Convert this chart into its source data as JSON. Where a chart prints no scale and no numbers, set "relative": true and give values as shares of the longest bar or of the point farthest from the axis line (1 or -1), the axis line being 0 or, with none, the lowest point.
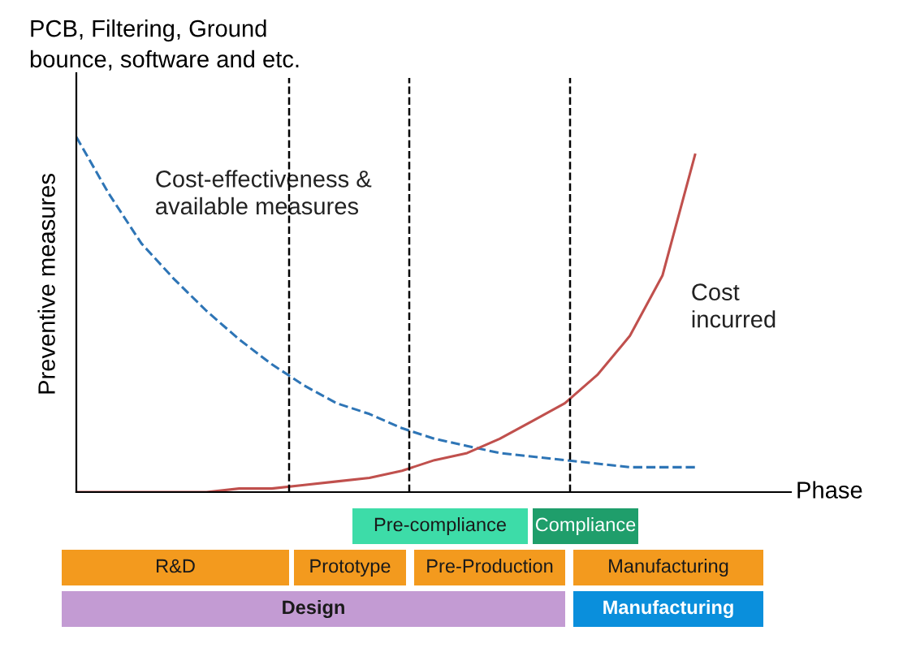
{
  "chart_data": {
    "type": "line",
    "relative": true,
    "title": "PCB, Filtering, Ground\nbounce, software and etc.",
    "ylabel": "Preventive measures",
    "xlabel": "Phase",
    "categories": [
      null,
      null,
      null,
      null,
      null,
      null,
      null,
      null,
      null,
      null,
      null,
      null,
      null,
      null,
      null,
      null,
      null,
      null,
      null,
      null
    ],
    "series": [
      {
        "name": "Cost-effectiveness &\navailable measures",
        "color": "#2e75b6",
        "line_style": "dashed",
        "values": [
          1,
          0.84,
          0.7,
          0.6,
          0.51,
          0.43,
          0.36,
          0.3,
          0.25,
          0.22,
          0.18,
          0.15,
          0.13,
          0.11,
          0.1,
          0.09,
          0.08,
          0.07,
          0.07,
          0.07
        ]
      },
      {
        "name": "Cost\nincurred",
        "color": "#c0504d",
        "line_style": "solid",
        "values": [
          0,
          0,
          0,
          0,
          0,
          0.01,
          0.01,
          0.02,
          0.03,
          0.04,
          0.06,
          0.09,
          0.11,
          0.15,
          0.2,
          0.25,
          0.33,
          0.44,
          0.61,
          0.95
        ]
      }
    ],
    "annotations": [
      "Pre-compliance",
      "Compliance",
      "R&D",
      "Prototype",
      "Pre-Production",
      "Manufacturing",
      "Design",
      "Manufacturing"
    ]
  }
}
